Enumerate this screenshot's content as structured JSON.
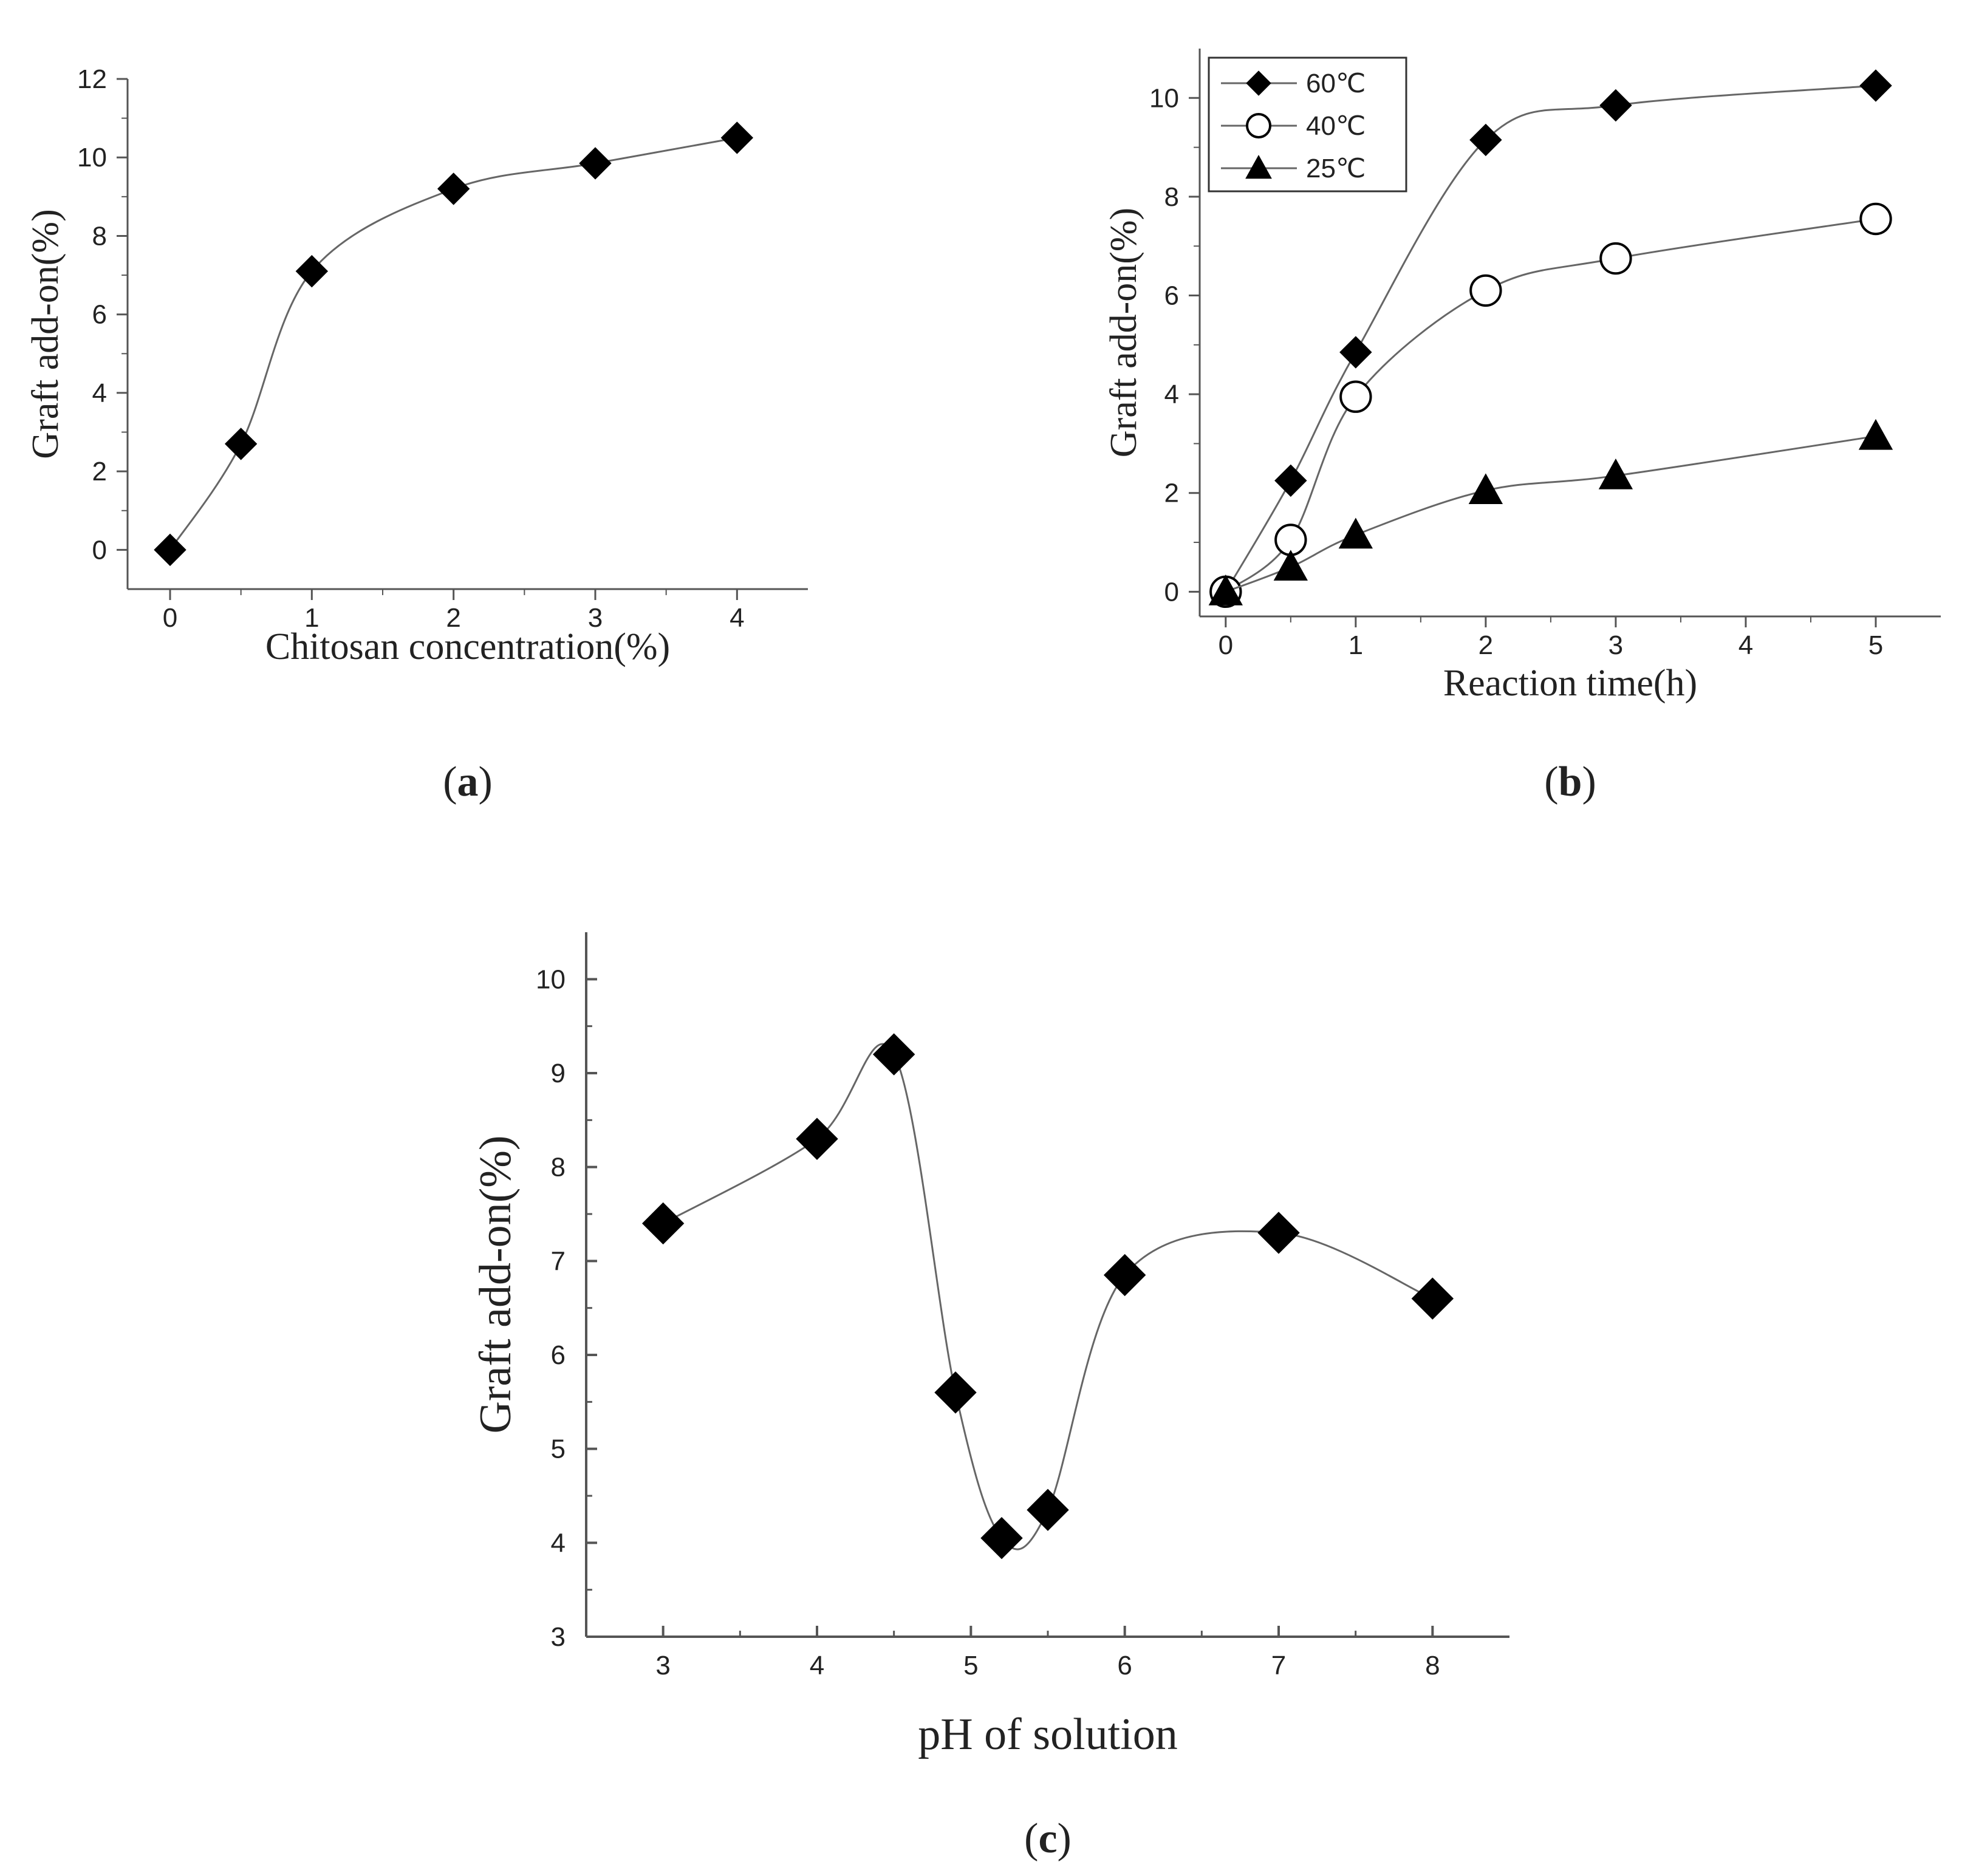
{
  "chart_data": [
    {
      "id": "a",
      "type": "line",
      "panel_label": "a",
      "xlabel": "Chitosan concentration(%)",
      "ylabel": "Graft add-on(%)",
      "xlim": [
        -0.3,
        4.5
      ],
      "ylim": [
        -1,
        12
      ],
      "xticks": [
        0,
        1,
        2,
        3,
        4
      ],
      "yticks": [
        0,
        2,
        4,
        6,
        8,
        10,
        12
      ],
      "grid": false,
      "series": [
        {
          "name": "Graft add-on",
          "marker": "diamond-filled",
          "x": [
            0,
            0.5,
            1,
            2,
            3,
            4
          ],
          "y": [
            0,
            2.7,
            7.1,
            9.2,
            9.85,
            10.5
          ]
        }
      ]
    },
    {
      "id": "b",
      "type": "line",
      "panel_label": "b",
      "xlabel": "Reaction time(h)",
      "ylabel": "Graft add-on(%)",
      "xlim": [
        -0.2,
        5.5
      ],
      "ylim": [
        -0.5,
        11
      ],
      "xticks": [
        0,
        1,
        2,
        3,
        4,
        5
      ],
      "yticks": [
        0,
        2,
        4,
        6,
        8,
        10
      ],
      "grid": false,
      "legend_position": "top-left",
      "series": [
        {
          "name": "60℃",
          "marker": "diamond-filled",
          "x": [
            0,
            0.5,
            1,
            2,
            3,
            5
          ],
          "y": [
            0,
            2.25,
            4.85,
            9.15,
            9.85,
            10.25
          ]
        },
        {
          "name": "40℃",
          "marker": "circle-open",
          "x": [
            0,
            0.5,
            1,
            2,
            3,
            5
          ],
          "y": [
            0,
            1.05,
            3.95,
            6.1,
            6.75,
            7.55
          ]
        },
        {
          "name": "25℃",
          "marker": "triangle-filled",
          "x": [
            0,
            0.5,
            1,
            2,
            3,
            5
          ],
          "y": [
            0,
            0.5,
            1.15,
            2.05,
            2.35,
            3.15
          ]
        }
      ]
    },
    {
      "id": "c",
      "type": "line",
      "panel_label": "c",
      "xlabel": "pH of solution",
      "ylabel": "Graft add-on(%)",
      "xlim": [
        2.5,
        8.5
      ],
      "ylim": [
        3,
        10.5
      ],
      "xticks": [
        3,
        4,
        5,
        6,
        7,
        8
      ],
      "yticks": [
        3,
        4,
        5,
        6,
        7,
        8,
        9,
        10
      ],
      "grid": false,
      "series": [
        {
          "name": "Graft add-on",
          "marker": "diamond-filled",
          "x": [
            3,
            4,
            4.5,
            4.9,
            5.2,
            5.5,
            6,
            7,
            8
          ],
          "y": [
            7.4,
            8.3,
            9.2,
            5.6,
            4.05,
            4.35,
            6.85,
            7.3,
            6.6
          ]
        }
      ]
    }
  ]
}
